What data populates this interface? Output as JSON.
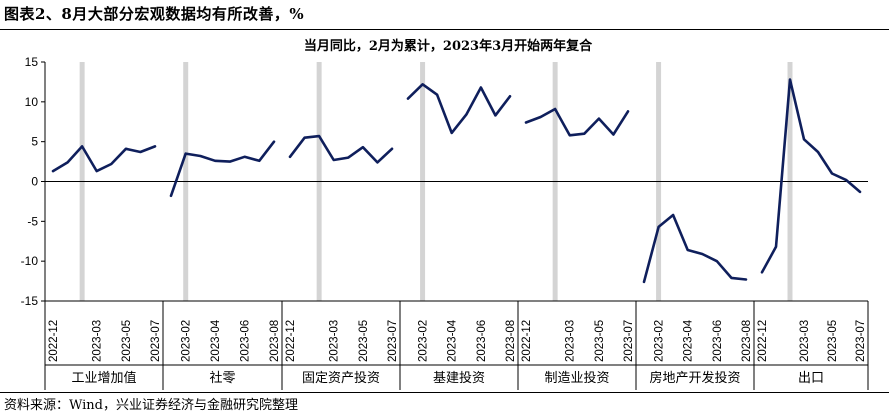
{
  "page": {
    "figure_title": "图表2、8月大部分宏观数据均有所改善，%",
    "source": "资料来源：Wind，兴业证券经济与金融研究院整理"
  },
  "chart_data": {
    "type": "line",
    "title": "当月同比，2月为累计，2023年3月开始两年复合",
    "xlabel": "",
    "ylabel": "",
    "ylim": [
      -15,
      15
    ],
    "yticks": [
      -15,
      -10,
      -5,
      0,
      5,
      10,
      15
    ],
    "grid": false,
    "line_color": "#0f1f5c",
    "highlight_color": "#d4d4d4",
    "groups": [
      {
        "name": "工业增加值",
        "labeled_dates": [
          "2022-12",
          "2023-03",
          "2023-05",
          "2023-07"
        ],
        "values": [
          1.3,
          2.4,
          4.4,
          1.3,
          2.2,
          4.1,
          3.7,
          4.4
        ],
        "highlight_index": 2
      },
      {
        "name": "社零",
        "labeled_dates": [
          "2023-02",
          "2023-04",
          "2023-06",
          "2023-08"
        ],
        "values": [
          -1.8,
          3.5,
          3.2,
          2.6,
          2.5,
          3.1,
          2.6,
          5.0
        ],
        "highlight_index": 1
      },
      {
        "name": "固定资产投资",
        "labeled_dates": [
          "2022-12",
          "2023-03",
          "2023-05",
          "2023-07"
        ],
        "values": [
          3.1,
          5.5,
          5.7,
          2.7,
          3.0,
          4.3,
          2.4,
          4.1
        ],
        "highlight_index": 2
      },
      {
        "name": "基建投资",
        "labeled_dates": [
          "2023-02",
          "2023-04",
          "2023-06",
          "2023-08"
        ],
        "values": [
          10.4,
          12.2,
          10.9,
          6.1,
          8.4,
          11.8,
          8.3,
          10.7
        ],
        "highlight_index": 1
      },
      {
        "name": "制造业投资",
        "labeled_dates": [
          "2022-12",
          "2023-03",
          "2023-05",
          "2023-07"
        ],
        "values": [
          7.4,
          8.1,
          9.1,
          5.8,
          6.0,
          7.9,
          5.9,
          8.8
        ],
        "highlight_index": 2
      },
      {
        "name": "房地产开发投资",
        "labeled_dates": [
          "2023-02",
          "2023-04",
          "2023-06",
          "2023-08"
        ],
        "values": [
          -12.6,
          -5.7,
          -4.2,
          -8.6,
          -9.1,
          -10.0,
          -12.1,
          -12.3
        ],
        "highlight_index": 1
      },
      {
        "name": "出口",
        "labeled_dates": [
          "2022-12",
          "2023-03",
          "2023-05",
          "2023-07"
        ],
        "values": [
          -11.4,
          -8.2,
          12.8,
          5.3,
          3.7,
          1.0,
          0.2,
          -1.3
        ],
        "highlight_index": 2
      }
    ]
  }
}
